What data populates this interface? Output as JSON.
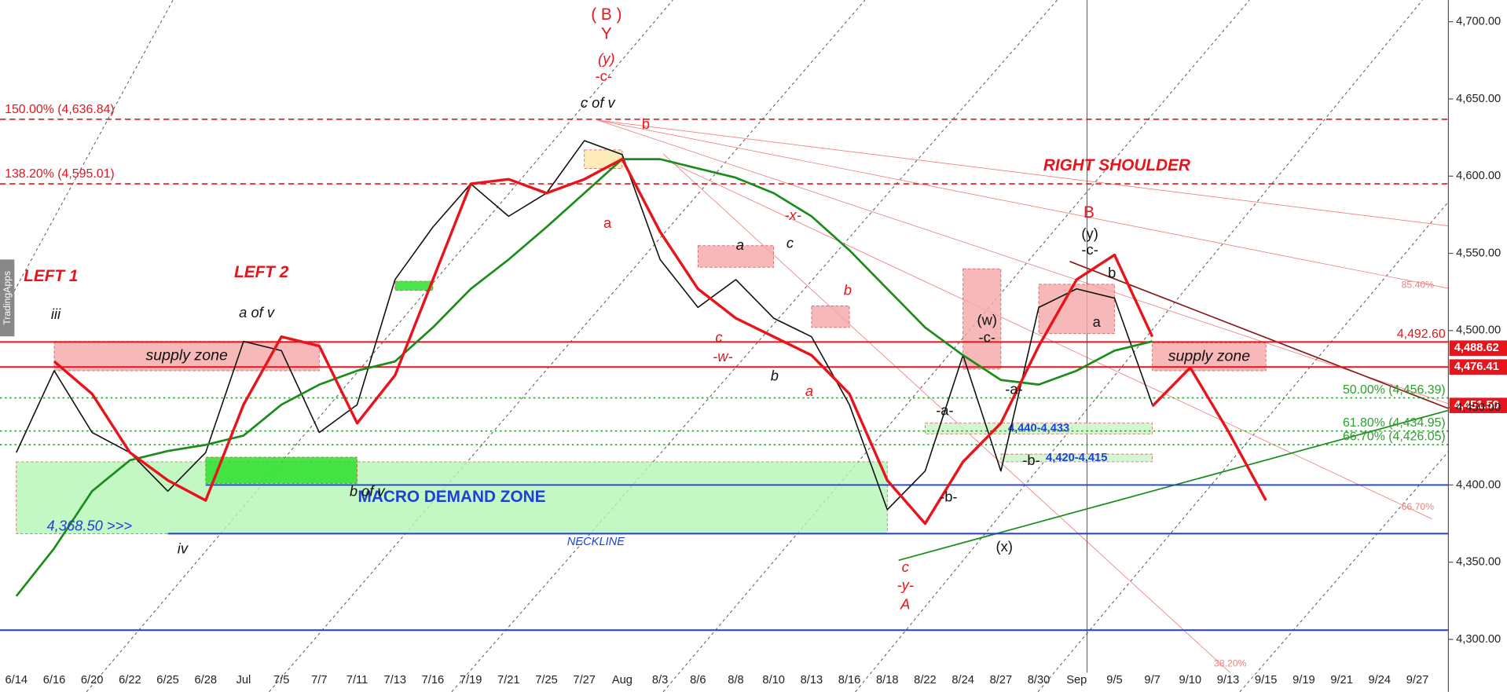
{
  "chart_data": {
    "type": "line",
    "categories": [
      "6/14",
      "6/16",
      "6/20",
      "6/22",
      "6/25",
      "6/28",
      "Jul",
      "7/5",
      "7/7",
      "7/11",
      "7/13",
      "7/16",
      "7/19",
      "7/21",
      "7/25",
      "7/27",
      "Aug",
      "8/3",
      "8/6",
      "8/8",
      "8/10",
      "8/13",
      "8/16",
      "8/18",
      "8/22",
      "8/24",
      "8/27",
      "8/30",
      "Sep",
      "9/5",
      "9/7",
      "9/10",
      "9/13",
      "9/15",
      "9/19",
      "9/21",
      "9/24",
      "9/27"
    ],
    "series": [
      {
        "color": "#111111",
        "values": [
          4421,
          4474,
          4434,
          4421,
          4396,
          4421,
          4493,
          4487,
          4434,
          4452,
          4533,
          4567,
          4595,
          4574,
          4589,
          4623,
          4614,
          4546,
          4515,
          4533,
          4508,
          4496,
          4452,
          4384,
          4409,
          4484,
          4409,
          4515,
          4527,
          4521,
          4452,
          null,
          null,
          null,
          null,
          null,
          null,
          null
        ]
      },
      {
        "color": "#1a8c1a",
        "values": [
          4328,
          4359,
          4396,
          4416,
          4422,
          4426,
          4432,
          4452,
          4465,
          4474,
          4480,
          4502,
          4527,
          4546,
          4567,
          4589,
          4611,
          4611,
          4605,
          4599,
          4589,
          4574,
          4552,
          4527,
          4502,
          4484,
          4468,
          4465,
          4474,
          4487,
          4493,
          null,
          null,
          null,
          null,
          null,
          null,
          null
        ]
      },
      {
        "color": "#e8141b",
        "values": [
          null,
          4480,
          4459,
          4421,
          4403,
          4390,
          4452,
          4496,
          4490,
          4440,
          4471,
          4533,
          4595,
          4598,
          4589,
          4598,
          4611,
          4564,
          4527,
          4508,
          4496,
          4484,
          4459,
          4403,
          4375,
          4415,
          4440,
          4490,
          4533,
          4549,
          4496,
          null,
          null,
          null,
          null,
          null,
          null,
          null
        ]
      },
      {
        "color": "#e8141b",
        "values": [
          null,
          null,
          null,
          null,
          null,
          null,
          null,
          null,
          null,
          null,
          null,
          null,
          null,
          null,
          null,
          null,
          null,
          null,
          null,
          null,
          null,
          null,
          null,
          null,
          null,
          null,
          null,
          null,
          null,
          null,
          4451,
          4476,
          4435,
          4390,
          null,
          null,
          null,
          null
        ]
      }
    ],
    "ylim": [
      4266,
      4714
    ],
    "yticks": [
      {
        "value": 4300,
        "label": "4,300.00"
      },
      {
        "value": 4350,
        "label": "4,350.00"
      },
      {
        "value": 4400,
        "label": "4,400.00"
      },
      {
        "value": 4450,
        "label": "4,450.00"
      },
      {
        "value": 4500,
        "label": "4,500.00"
      },
      {
        "value": 4550,
        "label": "4,550.00"
      },
      {
        "value": 4600,
        "label": "4,600.00"
      },
      {
        "value": 4650,
        "label": "4,650.00"
      },
      {
        "value": 4700,
        "label": "4,700.00"
      }
    ],
    "levels": [
      {
        "value": 4636.84,
        "label": "150.00% (4,636.84)",
        "color": "#e8141b",
        "style": "dashed",
        "place": "left"
      },
      {
        "value": 4595.01,
        "label": "138.20% (4,595.01)",
        "color": "#e8141b",
        "style": "dashed",
        "place": "left"
      },
      {
        "value": 4492.6,
        "label": "4,492.60",
        "color": "#e8141b",
        "style": "solid",
        "place": "right"
      },
      {
        "value": 4488.62,
        "label": "4,488.62",
        "color": "#e8141b",
        "style": "none",
        "place": "axis"
      },
      {
        "value": 4476.41,
        "label": "4,476.41",
        "color": "#e8141b",
        "style": "solid",
        "place": "axis"
      },
      {
        "value": 4451.5,
        "label": "4,451.50",
        "color": "#e8141b",
        "style": "none",
        "place": "axis"
      },
      {
        "value": 4456.39,
        "label": "50.00% (4,456.39)",
        "color": "#2ca02c",
        "style": "dotted",
        "place": "right"
      },
      {
        "value": 4434.95,
        "label": "61.80% (4,434.95)",
        "color": "#2ca02c",
        "style": "dotted",
        "place": "right"
      },
      {
        "value": 4426.05,
        "label": "66.70% (4,426.05)",
        "color": "#2ca02c",
        "style": "dotted",
        "place": "right"
      },
      {
        "value": 4400,
        "color": "#1f3fd6",
        "style": "solid",
        "start": "6/28"
      },
      {
        "value": 4368.5,
        "color": "#1f3fd6",
        "style": "solid",
        "start": "6/25"
      },
      {
        "value": 4306,
        "color": "#1f3fd6",
        "style": "solid"
      }
    ],
    "zones": [
      {
        "label": "supply zone",
        "start": "6/16",
        "end": "7/7",
        "top": 4493,
        "bottom": 4474,
        "color": "#f4a6a6"
      },
      {
        "label": "MACRO DEMAND ZONE",
        "start": "6/14",
        "end": "8/18",
        "top": 4415,
        "bottom": 4368.5,
        "color": "#b4f5b4"
      },
      {
        "label": "supply zone",
        "start": "9/7",
        "end": "9/15",
        "top": 4492,
        "bottom": 4474,
        "color": "#f4a6a6"
      },
      {
        "label": "4,440-4,433",
        "start": "8/22",
        "end": "9/7",
        "top": 4440,
        "bottom": 4433,
        "color": "#c8f5c8"
      },
      {
        "label": "4,420-4,415",
        "start": "8/27",
        "end": "9/7",
        "top": 4420,
        "bottom": 4415,
        "color": "#c8f5c8"
      },
      {
        "start": "6/28",
        "end": "7/11",
        "top": 4418,
        "bottom": 4401,
        "color": "#22dd22"
      },
      {
        "start": "7/13",
        "end": "7/16",
        "top": 4532,
        "bottom": 4526,
        "color": "#22dd22"
      },
      {
        "start": "8/6",
        "end": "8/10",
        "top": 4555,
        "bottom": 4541,
        "color": "#f4a6a6"
      },
      {
        "start": "8/13",
        "end": "8/16",
        "top": 4516,
        "bottom": 4502,
        "color": "#f4a6a6"
      },
      {
        "start": "8/24",
        "end": "8/27",
        "top": 4540,
        "bottom": 4475,
        "color": "#f4a6a6"
      },
      {
        "start": "8/30",
        "end": "9/5",
        "top": 4530,
        "bottom": 4498,
        "color": "#f4a6a6"
      },
      {
        "start": "7/27",
        "end": "Aug",
        "top": 4617,
        "bottom": 4605,
        "color": "#fde7a8"
      }
    ],
    "annotations": [
      "( B )",
      "Y",
      "(y)",
      "-c-",
      "c of v",
      "b",
      "a",
      "LEFT 1",
      "LEFT 2",
      "iii",
      "a of v",
      "b of v",
      "4,368.50 >>>",
      "NECKLINE",
      "iv",
      "a",
      "c",
      "c",
      "-w-",
      "b",
      "a",
      "-x-",
      "b",
      "c",
      "-y-",
      "A",
      "(w)",
      "-c-",
      "-a-",
      "-b-",
      "-a-",
      "-b-",
      "(x)",
      "B",
      "(y)",
      "-c-",
      "b",
      "a",
      "RIGHT SHOULDER",
      "85.40%",
      "66.70%",
      "38.20%",
      "TradingApps"
    ]
  }
}
